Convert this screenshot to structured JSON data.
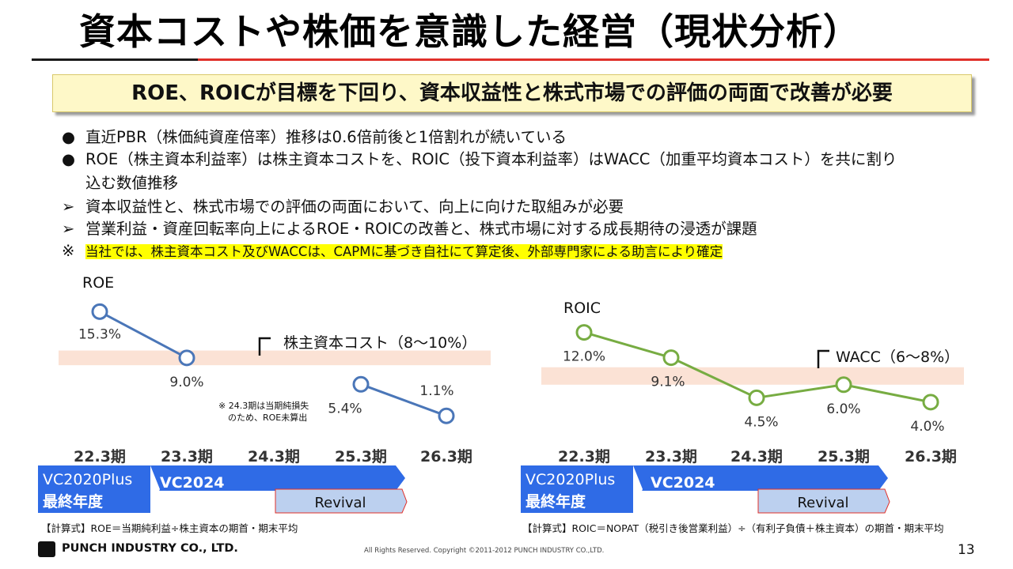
{
  "title": "資本コストや株価を意識した経営（現状分析）",
  "banner": "ROE、ROICが目標を下回り、資本収益性と株式市場での評価の両面で改善が必要",
  "bullets": [
    {
      "marker": "●",
      "text": "直近PBR（株価純資産倍率）推移は0.6倍前後と1倍割れが続いている"
    },
    {
      "marker": "●",
      "text": "ROE（株主資本利益率）は株主資本コストを、ROIC（投下資本利益率）はWACC（加重平均資本コスト）を共に割り"
    },
    {
      "marker": "",
      "text": "込む数値推移"
    },
    {
      "marker": "➢",
      "text": "資本収益性と、株式市場での評価の両面において、向上に向けた取組みが必要"
    },
    {
      "marker": "➢",
      "text": "営業利益・資産回転率向上によるROE・ROICの改善と、株式市場に対する成長期待の浸透が課題"
    },
    {
      "marker": "※",
      "text": "当社では、株主資本コスト及びWACCは、CAPMに基づき自社にて算定後、外部専門家による助言により確定"
    }
  ],
  "chart_data": [
    {
      "type": "line",
      "title": "ROE",
      "categories": [
        "22.3期",
        "23.3期",
        "24.3期",
        "25.3期",
        "26.3期"
      ],
      "series": [
        {
          "name": "ROE",
          "color": "#4a76b8",
          "values": [
            15.3,
            9.0,
            null,
            5.4,
            1.1
          ]
        }
      ],
      "value_labels": [
        "15.3%",
        "9.0%",
        "",
        "5.4%",
        "1.1%"
      ],
      "band": {
        "label": "株主資本コスト（8～10%）",
        "range": [
          8,
          10
        ],
        "color": "#fbe2d5"
      },
      "annotation": [
        "※ 24.3期は当期純損失",
        "のため、ROE未算出"
      ],
      "ylim": [
        -2,
        19
      ]
    },
    {
      "type": "line",
      "title": "ROIC",
      "categories": [
        "22.3期",
        "23.3期",
        "24.3期",
        "25.3期",
        "26.3期"
      ],
      "series": [
        {
          "name": "ROIC",
          "color": "#77ac42",
          "values": [
            12.0,
            9.1,
            4.5,
            6.0,
            4.0
          ]
        }
      ],
      "value_labels": [
        "12.0%",
        "9.1%",
        "4.5%",
        "6.0%",
        "4.0%"
      ],
      "band": {
        "label": "WACC（6～8%）",
        "range": [
          6,
          8
        ],
        "color": "#fbe2d5"
      },
      "ylim": [
        -2,
        15.5
      ]
    }
  ],
  "phases": {
    "vc2020_line1": "VC2020Plus",
    "vc2020_line2": "最終年度",
    "vc2024": "VC2024",
    "revival": "Revival"
  },
  "formulas": {
    "roe": "【計算式】ROE＝当期純利益÷株主資本の期首・期末平均",
    "roic": "【計算式】ROIC＝NOPAT（税引き後営業利益）÷（有利子負債＋株主資本）の期首・期末平均"
  },
  "footer": {
    "company": "PUNCH INDUSTRY CO., LTD.",
    "copyright": "All Rights Reserved. Copyright ©2011-2012  PUNCH  INDUSTRY  CO.,LTD.",
    "page": "13"
  }
}
